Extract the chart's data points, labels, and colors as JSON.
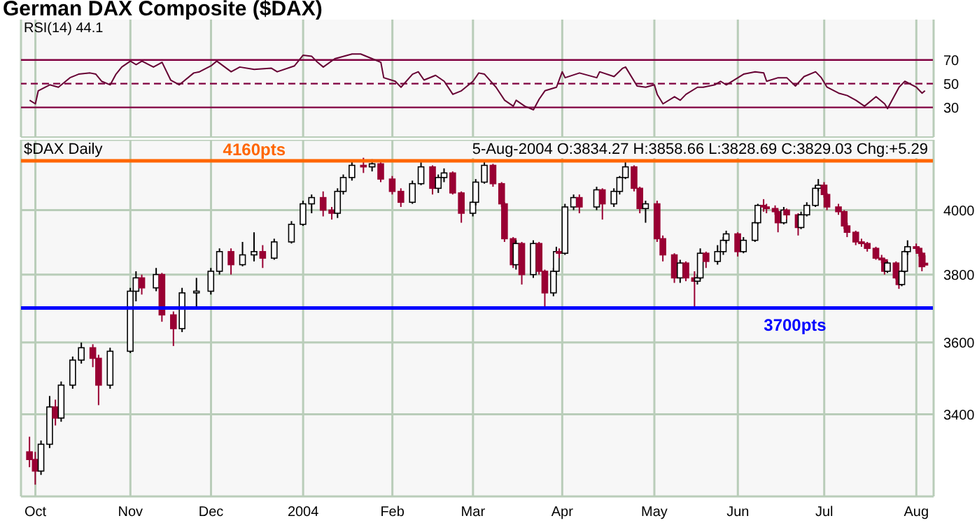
{
  "chart_data": [
    {
      "type": "line",
      "title": "German DAX Composite ($DAX)",
      "subtitle": "RSI(14) 44.1",
      "xlim": [
        "2003-09-26",
        "2004-08-08"
      ],
      "xticks": [
        {
          "value": "2003-10-01",
          "label": null
        },
        {
          "value": "2003-11-03",
          "label": null
        },
        {
          "value": "2003-12-01",
          "label": null
        },
        {
          "value": "2004-01-02",
          "label": null
        },
        {
          "value": "2004-02-02",
          "label": null
        },
        {
          "value": "2004-03-01",
          "label": null
        },
        {
          "value": "2004-04-01",
          "label": null
        },
        {
          "value": "2004-05-03",
          "label": null
        },
        {
          "value": "2004-06-01",
          "label": null
        },
        {
          "value": "2004-07-01",
          "label": null
        },
        {
          "value": "2004-08-02",
          "label": null
        }
      ],
      "ylim": [
        5,
        104
      ],
      "yticks": [
        30,
        50,
        70
      ],
      "tick_labels": "y",
      "grid": "x",
      "legend": false,
      "marker": "none",
      "x": [
        "2003-09-29",
        "2003-10-01",
        "2003-10-02",
        "2003-10-06",
        "2003-10-09",
        "2003-10-13",
        "2003-10-16",
        "2003-10-20",
        "2003-10-22",
        "2003-10-24",
        "2003-10-27",
        "2003-10-29",
        "2003-10-31",
        "2003-11-03",
        "2003-11-05",
        "2003-11-07",
        "2003-11-11",
        "2003-11-14",
        "2003-11-17",
        "2003-11-20",
        "2003-11-25",
        "2003-11-27",
        "2003-12-01",
        "2003-12-03",
        "2003-12-08",
        "2003-12-11",
        "2003-12-16",
        "2003-12-22",
        "2003-12-24",
        "2003-12-30",
        "2004-01-02",
        "2004-01-05",
        "2004-01-07",
        "2004-01-09",
        "2004-01-13",
        "2004-01-19",
        "2004-01-22",
        "2004-01-26",
        "2004-01-29",
        "2004-01-30",
        "2004-02-03",
        "2004-02-05",
        "2004-02-09",
        "2004-02-11",
        "2004-02-13",
        "2004-02-17",
        "2004-02-20",
        "2004-02-23",
        "2004-02-26",
        "2004-03-01",
        "2004-03-03",
        "2004-03-05",
        "2004-03-09",
        "2004-03-12",
        "2004-03-15",
        "2004-03-16",
        "2004-03-19",
        "2004-03-22",
        "2004-03-24",
        "2004-03-26",
        "2004-03-30",
        "2004-04-01",
        "2004-04-02",
        "2004-04-07",
        "2004-04-13",
        "2004-04-14",
        "2004-04-19",
        "2004-04-22",
        "2004-04-23",
        "2004-04-27",
        "2004-04-30",
        "2004-05-03",
        "2004-05-04",
        "2004-05-06",
        "2004-05-10",
        "2004-05-12",
        "2004-05-14",
        "2004-05-18",
        "2004-05-20",
        "2004-05-24",
        "2004-05-26",
        "2004-05-28",
        "2004-06-03",
        "2004-06-07",
        "2004-06-10",
        "2004-06-11",
        "2004-06-15",
        "2004-06-18",
        "2004-06-21",
        "2004-06-24",
        "2004-06-28",
        "2004-06-30",
        "2004-07-02",
        "2004-07-06",
        "2004-07-09",
        "2004-07-12",
        "2004-07-15",
        "2004-07-19",
        "2004-07-22",
        "2004-07-23",
        "2004-07-27",
        "2004-07-29",
        "2004-08-02",
        "2004-08-04",
        "2004-08-05"
      ],
      "series": [
        {
          "color": "#660033",
          "line_style": "solid",
          "values": [
            36,
            33,
            44,
            49,
            47,
            55,
            58,
            59,
            58,
            52,
            49,
            58,
            64,
            69,
            66,
            69,
            64,
            68,
            53,
            49,
            59,
            60,
            65,
            69,
            60,
            64,
            62,
            63,
            60,
            65,
            74,
            73,
            68,
            64,
            71,
            75,
            75,
            71,
            68,
            55,
            52,
            47,
            58,
            60,
            53,
            57,
            52,
            41,
            44,
            52,
            59,
            58,
            47,
            36,
            31,
            36,
            31,
            28,
            37,
            44,
            47,
            60,
            55,
            59,
            55,
            60,
            56,
            63,
            64,
            48,
            47,
            49,
            41,
            33,
            39,
            36,
            41,
            47,
            47,
            49,
            52,
            49,
            58,
            60,
            59,
            52,
            55,
            55,
            48,
            56,
            60,
            55,
            47,
            42,
            40,
            36,
            31,
            39,
            33,
            29,
            47,
            52,
            47,
            42,
            44.1
          ]
        }
      ],
      "ref_lines": [
        {
          "axis": "y",
          "value": 70,
          "color": "#800040",
          "line_style": "solid"
        },
        {
          "axis": "y",
          "value": 50,
          "color": "#800040",
          "line_style": "dashed"
        },
        {
          "axis": "y",
          "value": 30,
          "color": "#800040",
          "line_style": "solid"
        }
      ]
    },
    {
      "type": "candlestick",
      "title": "$DAX Daily",
      "log": true,
      "annotations": [
        "5-Aug-2004 O:3834.27 H:3858.66 L:3828.69 C:3829.03 Chg:+5.29"
      ],
      "xlim": [
        "2003-09-26",
        "2004-08-08"
      ],
      "xticks": [
        {
          "value": "2003-10-01",
          "label": "Oct"
        },
        {
          "value": "2003-11-03",
          "label": "Nov"
        },
        {
          "value": "2003-12-01",
          "label": "Dec"
        },
        {
          "value": "2004-01-02",
          "label": "2004"
        },
        {
          "value": "2004-02-02",
          "label": "Feb"
        },
        {
          "value": "2004-03-01",
          "label": "Mar"
        },
        {
          "value": "2004-04-01",
          "label": "Apr"
        },
        {
          "value": "2004-05-03",
          "label": "May"
        },
        {
          "value": "2004-06-01",
          "label": "Jun"
        },
        {
          "value": "2004-07-01",
          "label": "Jul"
        },
        {
          "value": "2004-08-02",
          "label": "Aug"
        }
      ],
      "ylim": [
        3185,
        4230
      ],
      "yticks": [
        3400,
        3600,
        3800,
        4000
      ],
      "grid": true,
      "legend": false,
      "x": [
        "2003-09-29",
        "2003-10-01",
        "2003-10-03",
        "2003-10-06",
        "2003-10-08",
        "2003-10-10",
        "2003-10-14",
        "2003-10-17",
        "2003-10-21",
        "2003-10-23",
        "2003-10-27",
        "2003-11-03",
        "2003-11-05",
        "2003-11-07",
        "2003-11-12",
        "2003-11-14",
        "2003-11-18",
        "2003-11-21",
        "2003-11-26",
        "2003-12-01",
        "2003-12-04",
        "2003-12-08",
        "2003-12-12",
        "2003-12-16",
        "2003-12-19",
        "2003-12-23",
        "2003-12-29",
        "2004-01-02",
        "2004-01-05",
        "2004-01-09",
        "2004-01-12",
        "2004-01-14",
        "2004-01-16",
        "2004-01-19",
        "2004-01-23",
        "2004-01-26",
        "2004-01-29",
        "2004-02-02",
        "2004-02-05",
        "2004-02-09",
        "2004-02-12",
        "2004-02-16",
        "2004-02-18",
        "2004-02-20",
        "2004-02-23",
        "2004-02-26",
        "2004-03-01",
        "2004-03-02",
        "2004-03-05",
        "2004-03-08",
        "2004-03-11",
        "2004-03-12",
        "2004-03-15",
        "2004-03-16",
        "2004-03-18",
        "2004-03-22",
        "2004-03-24",
        "2004-03-26",
        "2004-03-29",
        "2004-03-30",
        "2004-03-31",
        "2004-04-02",
        "2004-04-05",
        "2004-04-07",
        "2004-04-13",
        "2004-04-15",
        "2004-04-19",
        "2004-04-21",
        "2004-04-23",
        "2004-04-26",
        "2004-04-28",
        "2004-04-30",
        "2004-05-04",
        "2004-05-06",
        "2004-05-10",
        "2004-05-12",
        "2004-05-14",
        "2004-05-17",
        "2004-05-18",
        "2004-05-19",
        "2004-05-21",
        "2004-05-25",
        "2004-05-27",
        "2004-05-28",
        "2004-06-01",
        "2004-06-03",
        "2004-06-07",
        "2004-06-08",
        "2004-06-10",
        "2004-06-11",
        "2004-06-14",
        "2004-06-15",
        "2004-06-17",
        "2004-06-18",
        "2004-06-22",
        "2004-06-23",
        "2004-06-25",
        "2004-06-28",
        "2004-06-29",
        "2004-07-01",
        "2004-07-02",
        "2004-07-06",
        "2004-07-08",
        "2004-07-09",
        "2004-07-12",
        "2004-07-14",
        "2004-07-16",
        "2004-07-19",
        "2004-07-21",
        "2004-07-22",
        "2004-07-23",
        "2004-07-26",
        "2004-07-27",
        "2004-07-28",
        "2004-07-29",
        "2004-07-30",
        "2004-08-02",
        "2004-08-03",
        "2004-08-04",
        "2004-08-05"
      ],
      "ohlc": [
        [
          3300,
          3340,
          3260,
          3280
        ],
        [
          3280,
          3300,
          3215,
          3250
        ],
        [
          3250,
          3330,
          3240,
          3320
        ],
        [
          3320,
          3450,
          3310,
          3420
        ],
        [
          3420,
          3440,
          3370,
          3390
        ],
        [
          3390,
          3490,
          3380,
          3480
        ],
        [
          3480,
          3560,
          3470,
          3550
        ],
        [
          3550,
          3600,
          3540,
          3585
        ],
        [
          3585,
          3595,
          3530,
          3555
        ],
        [
          3555,
          3565,
          3425,
          3480
        ],
        [
          3480,
          3585,
          3470,
          3575
        ],
        [
          3575,
          3760,
          3570,
          3750
        ],
        [
          3750,
          3810,
          3720,
          3790
        ],
        [
          3790,
          3800,
          3740,
          3760
        ],
        [
          3760,
          3820,
          3750,
          3800
        ],
        [
          3800,
          3805,
          3660,
          3680
        ],
        [
          3680,
          3690,
          3590,
          3640
        ],
        [
          3640,
          3760,
          3630,
          3745
        ],
        [
          3745,
          3790,
          3700,
          3750
        ],
        [
          3750,
          3820,
          3740,
          3810
        ],
        [
          3810,
          3880,
          3800,
          3870
        ],
        [
          3870,
          3880,
          3800,
          3830
        ],
        [
          3830,
          3900,
          3825,
          3860
        ],
        [
          3860,
          3930,
          3840,
          3870
        ],
        [
          3870,
          3890,
          3820,
          3850
        ],
        [
          3850,
          3910,
          3845,
          3900
        ],
        [
          3900,
          3965,
          3895,
          3955
        ],
        [
          3955,
          4030,
          3950,
          4020
        ],
        [
          4020,
          4050,
          3990,
          4040
        ],
        [
          4040,
          4060,
          3980,
          4000
        ],
        [
          4000,
          4010,
          3970,
          3990
        ],
        [
          3990,
          4070,
          3975,
          4060
        ],
        [
          4060,
          4115,
          4050,
          4105
        ],
        [
          4105,
          4160,
          4095,
          4145
        ],
        [
          4145,
          4170,
          4120,
          4140
        ],
        [
          4140,
          4165,
          4125,
          4150
        ],
        [
          4150,
          4155,
          4090,
          4100
        ],
        [
          4100,
          4110,
          4050,
          4060
        ],
        [
          4060,
          4070,
          4010,
          4025
        ],
        [
          4025,
          4095,
          4020,
          4085
        ],
        [
          4085,
          4155,
          4080,
          4140
        ],
        [
          4140,
          4145,
          4050,
          4070
        ],
        [
          4070,
          4115,
          4055,
          4105
        ],
        [
          4105,
          4135,
          4090,
          4120
        ],
        [
          4120,
          4125,
          4050,
          4055
        ],
        [
          4055,
          4060,
          3960,
          3990
        ],
        [
          3990,
          4030,
          3980,
          4025
        ],
        [
          4025,
          4100,
          4015,
          4090
        ],
        [
          4090,
          4160,
          4085,
          4145
        ],
        [
          4145,
          4150,
          4075,
          4085
        ],
        [
          4085,
          4090,
          4010,
          4020
        ],
        [
          4020,
          4025,
          3900,
          3910
        ],
        [
          3910,
          3915,
          3820,
          3830
        ],
        [
          3830,
          3905,
          3815,
          3895
        ],
        [
          3895,
          3900,
          3770,
          3800
        ],
        [
          3800,
          3905,
          3790,
          3895
        ],
        [
          3895,
          3900,
          3800,
          3810
        ],
        [
          3810,
          3815,
          3700,
          3745
        ],
        [
          3745,
          3820,
          3735,
          3810
        ],
        [
          3810,
          3885,
          3800,
          3870
        ],
        [
          3870,
          3880,
          3850,
          3865
        ],
        [
          3865,
          4020,
          3860,
          4010
        ],
        [
          4010,
          4050,
          4000,
          4040
        ],
        [
          4040,
          4050,
          3990,
          4010
        ],
        [
          4010,
          4075,
          4000,
          4065
        ],
        [
          4065,
          4070,
          3970,
          4020
        ],
        [
          4020,
          4070,
          4010,
          4060
        ],
        [
          4060,
          4110,
          4050,
          4105
        ],
        [
          4105,
          4160,
          4100,
          4140
        ],
        [
          4140,
          4145,
          4060,
          4070
        ],
        [
          4070,
          4075,
          3990,
          4005
        ],
        [
          4005,
          4030,
          3960,
          4020
        ],
        [
          4020,
          4030,
          3900,
          3910
        ],
        [
          3910,
          3920,
          3840,
          3860
        ],
        [
          3860,
          3865,
          3775,
          3790
        ],
        [
          3790,
          3845,
          3775,
          3835
        ],
        [
          3835,
          3840,
          3780,
          3790
        ],
        [
          3790,
          3810,
          3705,
          3780
        ],
        [
          3780,
          3800,
          3770,
          3790
        ],
        [
          3790,
          3880,
          3785,
          3865
        ],
        [
          3865,
          3870,
          3820,
          3840
        ],
        [
          3840,
          3890,
          3830,
          3870
        ],
        [
          3870,
          3915,
          3860,
          3905
        ],
        [
          3905,
          3935,
          3895,
          3925
        ],
        [
          3925,
          3930,
          3855,
          3870
        ],
        [
          3870,
          3915,
          3865,
          3905
        ],
        [
          3905,
          3965,
          3900,
          3960
        ],
        [
          3960,
          4020,
          3955,
          4015
        ],
        [
          4015,
          4035,
          3995,
          4010
        ],
        [
          4010,
          4020,
          3990,
          4005
        ],
        [
          4005,
          4015,
          3985,
          3995
        ],
        [
          3995,
          4000,
          3930,
          3960
        ],
        [
          3960,
          4010,
          3955,
          4000
        ],
        [
          4000,
          4005,
          3970,
          3985
        ],
        [
          3985,
          3990,
          3920,
          3945
        ],
        [
          3945,
          3995,
          3940,
          3985
        ],
        [
          3985,
          4025,
          3980,
          4015
        ],
        [
          4015,
          4080,
          4010,
          4070
        ],
        [
          4070,
          4100,
          4060,
          4080
        ],
        [
          4080,
          4090,
          4040,
          4050
        ],
        [
          4050,
          4055,
          4000,
          4010
        ],
        [
          4010,
          4020,
          3985,
          3995
        ],
        [
          3995,
          4000,
          3940,
          3950
        ],
        [
          3950,
          3960,
          3915,
          3930
        ],
        [
          3930,
          3935,
          3890,
          3900
        ],
        [
          3900,
          3910,
          3885,
          3895
        ],
        [
          3895,
          3900,
          3870,
          3880
        ],
        [
          3880,
          3885,
          3845,
          3850
        ],
        [
          3850,
          3860,
          3835,
          3845
        ],
        [
          3845,
          3850,
          3800,
          3810
        ],
        [
          3810,
          3840,
          3805,
          3835
        ],
        [
          3835,
          3840,
          3785,
          3790
        ],
        [
          3790,
          3795,
          3757,
          3770
        ],
        [
          3770,
          3815,
          3765,
          3810
        ],
        [
          3810,
          3875,
          3805,
          3870
        ],
        [
          3870,
          3905,
          3860,
          3885
        ],
        [
          3885,
          3895,
          3870,
          3880
        ],
        [
          3880,
          3885,
          3855,
          3865
        ],
        [
          3865,
          3870,
          3810,
          3824
        ],
        [
          3834.27,
          3858.66,
          3828.69,
          3829.03
        ]
      ],
      "ref_lines": [
        {
          "axis": "y",
          "value": 4160,
          "label": "4160pts",
          "color": "#ff6600"
        },
        {
          "axis": "y",
          "value": 3700,
          "label": "3700pts",
          "color": "#0000ff"
        }
      ]
    }
  ]
}
